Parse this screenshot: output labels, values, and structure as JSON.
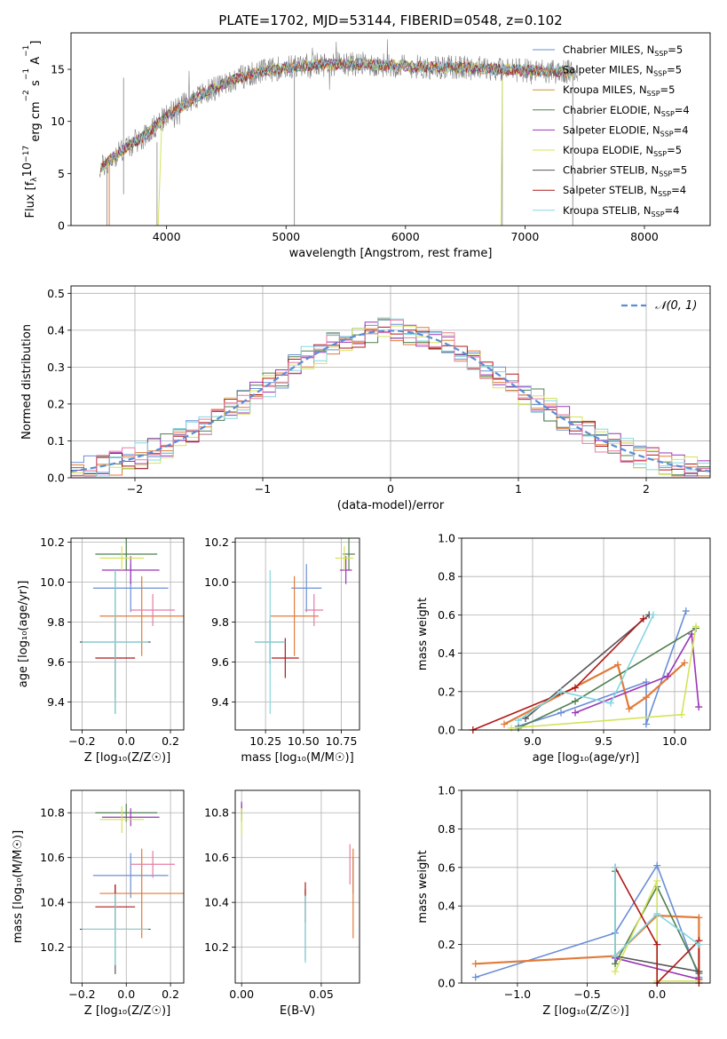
{
  "colors": {
    "chabrier_miles": "#6a8fd6",
    "salpeter_miles": "#e07b39",
    "kroupa_miles": "#c8963c",
    "chabrier_elodie": "#4f7f4f",
    "salpeter_elodie": "#9a36b7",
    "kroupa_elodie": "#d4e35a",
    "chabrier_stelib": "#555555",
    "salpeter_stelib": "#b01818",
    "kroupa_stelib": "#86d6e0",
    "pink": "#e67ba6",
    "normal_curve": "#5b8dd6",
    "grid": "#b0b0b0"
  },
  "chart_data": [
    {
      "id": "spectrum",
      "type": "line",
      "title": "PLATE=1702, MJD=53144, FIBERID=0548, z=0.102",
      "xlabel": "wavelength [Angstrom, rest frame]",
      "ylabel": "Flux [f",
      "ylabel_parts": [
        "Flux [f",
        "λ",
        "10",
        "−17",
        " erg cm",
        "−2",
        " s",
        "−1",
        " A",
        "−1",
        "]"
      ],
      "xlim": [
        3200,
        8550
      ],
      "ylim": [
        0,
        18.5
      ],
      "xticks": [
        4000,
        5000,
        6000,
        7000,
        8000
      ],
      "xtick_labels": [
        "4000",
        "5000",
        "6000",
        "7000",
        "8000"
      ],
      "yticks": [
        0,
        5,
        10,
        15
      ],
      "ytick_labels": [
        "0",
        "5",
        "10",
        "15"
      ],
      "grid": false,
      "legend_position": "top-right",
      "continuum": {
        "x": [
          3450,
          3600,
          3800,
          4000,
          4200,
          4400,
          4600,
          4800,
          5000,
          5200,
          5400,
          5600,
          5800,
          6000,
          6200,
          6400,
          6600,
          6800,
          7000,
          7200,
          7400
        ],
        "y": [
          5.5,
          7.0,
          8.5,
          10.5,
          12.0,
          13.2,
          14.2,
          14.8,
          15.2,
          15.4,
          15.5,
          15.5,
          15.4,
          15.3,
          15.2,
          15.2,
          15.1,
          15.0,
          14.9,
          14.8,
          14.7
        ]
      },
      "series": [
        {
          "name_parts": [
            "Chabrier MILES, N",
            "SSP",
            "=5"
          ],
          "color_key": "chabrier_miles"
        },
        {
          "name_parts": [
            "Salpeter MILES, N",
            "SSP",
            "=5"
          ],
          "color_key": "salpeter_miles"
        },
        {
          "name_parts": [
            "Kroupa MILES, N",
            "SSP",
            "=5"
          ],
          "color_key": "kroupa_miles"
        },
        {
          "name_parts": [
            "Chabrier ELODIE, N",
            "SSP",
            "=4"
          ],
          "color_key": "chabrier_elodie"
        },
        {
          "name_parts": [
            "Salpeter ELODIE, N",
            "SSP",
            "=4"
          ],
          "color_key": "salpeter_elodie"
        },
        {
          "name_parts": [
            "Kroupa ELODIE, N",
            "SSP",
            "=5"
          ],
          "color_key": "kroupa_elodie"
        },
        {
          "name_parts": [
            "Chabrier STELIB, N",
            "SSP",
            "=5"
          ],
          "color_key": "chabrier_stelib"
        },
        {
          "name_parts": [
            "Salpeter STELIB, N",
            "SSP",
            "=4"
          ],
          "color_key": "salpeter_stelib"
        },
        {
          "name_parts": [
            "Kroupa STELIB, N",
            "SSP",
            "=4"
          ],
          "color_key": "kroupa_stelib"
        }
      ]
    },
    {
      "id": "residuals",
      "type": "histogram",
      "xlabel": "(data-model)/error",
      "ylabel": "Normed distribution",
      "xlim": [
        -2.5,
        2.5
      ],
      "ylim": [
        0,
        0.52
      ],
      "xticks": [
        -2,
        -1,
        0,
        1,
        2
      ],
      "xtick_labels": [
        "−2",
        "−1",
        "0",
        "1",
        "2"
      ],
      "yticks": [
        0.0,
        0.1,
        0.2,
        0.3,
        0.4,
        0.5
      ],
      "ytick_labels": [
        "0.0",
        "0.1",
        "0.2",
        "0.3",
        "0.4",
        "0.5"
      ],
      "grid": true,
      "legend_position": "top-right",
      "legend_label": "𝒩(0, 1)",
      "bin_width": 0.1,
      "bin_start": -2.5,
      "hist_color_keys": [
        "chabrier_miles",
        "salpeter_miles",
        "chabrier_elodie",
        "salpeter_elodie",
        "kroupa_elodie",
        "salpeter_stelib",
        "kroupa_stelib",
        "pink"
      ]
    },
    {
      "id": "age_vs_Z",
      "type": "errorbar",
      "xlabel": "Z [log₁₀(Z/Z☉)]",
      "ylabel": "age  [log₁₀(age/yr)]",
      "xlim": [
        -0.25,
        0.26
      ],
      "ylim": [
        9.26,
        10.22
      ],
      "xticks": [
        -0.2,
        0.0,
        0.2
      ],
      "xtick_labels": [
        "−0.2",
        "0.0",
        "0.2"
      ],
      "yticks": [
        9.4,
        9.6,
        9.8,
        10.0,
        10.2
      ],
      "ytick_labels": [
        "9.4",
        "9.6",
        "9.8",
        "10.0",
        "10.2"
      ],
      "grid": true,
      "points": [
        {
          "color_key": "chabrier_miles",
          "x": 0.02,
          "xerr": 0.17,
          "y": 9.97,
          "yerr": 0.12
        },
        {
          "color_key": "salpeter_miles",
          "x": 0.07,
          "xerr": 0.19,
          "y": 9.83,
          "yerr": 0.2
        },
        {
          "color_key": "pink",
          "x": 0.12,
          "xerr": 0.1,
          "y": 9.86,
          "yerr": 0.08
        },
        {
          "color_key": "chabrier_elodie",
          "x": 0.0,
          "xerr": 0.14,
          "y": 10.14,
          "yerr": 0.08
        },
        {
          "color_key": "salpeter_elodie",
          "x": 0.02,
          "xerr": 0.13,
          "y": 10.06,
          "yerr": 0.07
        },
        {
          "color_key": "kroupa_elodie",
          "x": -0.02,
          "xerr": 0.1,
          "y": 10.12,
          "yerr": 0.06
        },
        {
          "color_key": "chabrier_stelib",
          "x": -0.05,
          "xerr": 0.16,
          "y": 9.7,
          "yerr": 0.36
        },
        {
          "color_key": "salpeter_stelib",
          "x": -0.05,
          "xerr": 0.09,
          "y": 9.62,
          "yerr": 0.2
        },
        {
          "color_key": "kroupa_stelib",
          "x": -0.05,
          "xerr": 0.15,
          "y": 9.7,
          "yerr": 0.36
        }
      ]
    },
    {
      "id": "age_vs_mass",
      "type": "errorbar",
      "xlabel": "mass [log₁₀(M/M☉)]",
      "ylabel": "",
      "xlim": [
        10.05,
        10.87
      ],
      "ylim": [
        9.26,
        10.22
      ],
      "xticks": [
        10.25,
        10.5,
        10.75
      ],
      "xtick_labels": [
        "10.25",
        "10.50",
        "10.75"
      ],
      "yticks": [
        9.4,
        9.6,
        9.8,
        10.0,
        10.2
      ],
      "ytick_labels": [
        "9.4",
        "9.6",
        "9.8",
        "10.0",
        "10.2"
      ],
      "grid": true,
      "points": [
        {
          "color_key": "chabrier_miles",
          "x": 10.52,
          "xerr": 0.1,
          "y": 9.97,
          "yerr": 0.12
        },
        {
          "color_key": "salpeter_miles",
          "x": 10.44,
          "xerr": 0.16,
          "y": 9.83,
          "yerr": 0.2
        },
        {
          "color_key": "pink",
          "x": 10.57,
          "xerr": 0.06,
          "y": 9.86,
          "yerr": 0.08
        },
        {
          "color_key": "chabrier_elodie",
          "x": 10.8,
          "xerr": 0.04,
          "y": 10.14,
          "yerr": 0.08
        },
        {
          "color_key": "salpeter_elodie",
          "x": 10.78,
          "xerr": 0.04,
          "y": 10.06,
          "yerr": 0.07
        },
        {
          "color_key": "kroupa_elodie",
          "x": 10.77,
          "xerr": 0.06,
          "y": 10.12,
          "yerr": 0.06
        },
        {
          "color_key": "chabrier_stelib",
          "x": 10.28,
          "xerr": 0.1,
          "y": 9.7,
          "yerr": 0.11
        },
        {
          "color_key": "salpeter_stelib",
          "x": 10.38,
          "xerr": 0.09,
          "y": 9.62,
          "yerr": 0.1
        },
        {
          "color_key": "kroupa_stelib",
          "x": 10.28,
          "xerr": 0.1,
          "y": 9.7,
          "yerr": 0.36
        }
      ]
    },
    {
      "id": "mass_weight_vs_age",
      "type": "line",
      "xlabel": "age  [log₁₀(age/yr)]",
      "ylabel": "mass weight",
      "xlim": [
        8.5,
        10.25
      ],
      "ylim": [
        0,
        1.0
      ],
      "xticks": [
        9.0,
        9.5,
        10.0
      ],
      "xtick_labels": [
        "9.0",
        "9.5",
        "10.0"
      ],
      "yticks": [
        0.0,
        0.2,
        0.4,
        0.6,
        0.8,
        1.0
      ],
      "ytick_labels": [
        "0.0",
        "0.2",
        "0.4",
        "0.6",
        "0.8",
        "1.0"
      ],
      "grid": true,
      "series": [
        {
          "color_key": "chabrier_miles",
          "x": [
            8.9,
            9.2,
            9.8,
            9.8,
            10.08
          ],
          "y": [
            0.02,
            0.09,
            0.25,
            0.03,
            0.62
          ]
        },
        {
          "color_key": "salpeter_miles",
          "x": [
            8.8,
            9.6,
            9.68,
            9.8,
            10.07
          ],
          "y": [
            0.03,
            0.34,
            0.11,
            0.17,
            0.35
          ]
        },
        {
          "color_key": "chabrier_elodie",
          "x": [
            8.9,
            9.3,
            10.15
          ],
          "y": [
            0.01,
            0.15,
            0.53
          ]
        },
        {
          "color_key": "salpeter_elodie",
          "x": [
            9.3,
            9.95,
            10.12,
            10.17
          ],
          "y": [
            0.09,
            0.28,
            0.5,
            0.12
          ]
        },
        {
          "color_key": "kroupa_elodie",
          "x": [
            8.85,
            10.05,
            10.15
          ],
          "y": [
            0.01,
            0.08,
            0.54
          ]
        },
        {
          "color_key": "chabrier_stelib",
          "x": [
            8.95,
            9.82
          ],
          "y": [
            0.06,
            0.6
          ]
        },
        {
          "color_key": "salpeter_stelib",
          "x": [
            8.58,
            9.3,
            9.78
          ],
          "y": [
            0.0,
            0.22,
            0.58
          ]
        },
        {
          "color_key": "kroupa_stelib",
          "x": [
            8.9,
            9.2,
            9.55,
            9.85
          ],
          "y": [
            0.05,
            0.2,
            0.14,
            0.6
          ]
        }
      ]
    },
    {
      "id": "mass_vs_Z",
      "type": "errorbar",
      "xlabel": "Z [log₁₀(Z/Z☉)]",
      "ylabel": "mass [log₁₀(M/M☉)]",
      "xlim": [
        -0.25,
        0.26
      ],
      "ylim": [
        10.04,
        10.9
      ],
      "xticks": [
        -0.2,
        0.0,
        0.2
      ],
      "xtick_labels": [
        "−0.2",
        "0.0",
        "0.2"
      ],
      "yticks": [
        10.2,
        10.4,
        10.6,
        10.8
      ],
      "ytick_labels": [
        "10.2",
        "10.4",
        "10.6",
        "10.8"
      ],
      "grid": true,
      "points": [
        {
          "color_key": "chabrier_miles",
          "x": 0.02,
          "xerr": 0.17,
          "y": 10.52,
          "yerr": 0.1
        },
        {
          "color_key": "salpeter_miles",
          "x": 0.07,
          "xerr": 0.19,
          "y": 10.44,
          "yerr": 0.2
        },
        {
          "color_key": "pink",
          "x": 0.12,
          "xerr": 0.1,
          "y": 10.57,
          "yerr": 0.06
        },
        {
          "color_key": "chabrier_elodie",
          "x": 0.0,
          "xerr": 0.14,
          "y": 10.8,
          "yerr": 0.04
        },
        {
          "color_key": "salpeter_elodie",
          "x": 0.02,
          "xerr": 0.13,
          "y": 10.78,
          "yerr": 0.04
        },
        {
          "color_key": "kroupa_elodie",
          "x": -0.02,
          "xerr": 0.1,
          "y": 10.77,
          "yerr": 0.06
        },
        {
          "color_key": "chabrier_stelib",
          "x": -0.05,
          "xerr": 0.16,
          "y": 10.28,
          "yerr": 0.2
        },
        {
          "color_key": "salpeter_stelib",
          "x": -0.05,
          "xerr": 0.09,
          "y": 10.38,
          "yerr": 0.1
        },
        {
          "color_key": "kroupa_stelib",
          "x": -0.05,
          "xerr": 0.15,
          "y": 10.28,
          "yerr": 0.16
        }
      ]
    },
    {
      "id": "mass_vs_EBV",
      "type": "errorbar",
      "xlabel": "E(B-V)",
      "ylabel": "",
      "xlim": [
        -0.004,
        0.074
      ],
      "ylim": [
        10.04,
        10.9
      ],
      "xticks": [
        0.0,
        0.05
      ],
      "xtick_labels": [
        "0.00",
        "0.05"
      ],
      "yticks": [
        10.2,
        10.4,
        10.6,
        10.8
      ],
      "ytick_labels": [
        "10.2",
        "10.4",
        "10.6",
        "10.8"
      ],
      "grid": true,
      "points": [
        {
          "color_key": "chabrier_miles",
          "x": 0.07,
          "xerr": 0,
          "y": 10.52,
          "yerr": 0.08
        },
        {
          "color_key": "salpeter_miles",
          "x": 0.07,
          "xerr": 0,
          "y": 10.44,
          "yerr": 0.2
        },
        {
          "color_key": "pink",
          "x": 0.068,
          "xerr": 0,
          "y": 10.57,
          "yerr": 0.09
        },
        {
          "color_key": "chabrier_elodie",
          "x": 0.0,
          "xerr": 0,
          "y": 10.8,
          "yerr": 0.04
        },
        {
          "color_key": "salpeter_elodie",
          "x": 0.0,
          "xerr": 0,
          "y": 10.82,
          "yerr": 0.03
        },
        {
          "color_key": "kroupa_elodie",
          "x": 0.0,
          "xerr": 0,
          "y": 10.76,
          "yerr": 0.06
        },
        {
          "color_key": "chabrier_stelib",
          "x": 0.04,
          "xerr": 0,
          "y": 10.3,
          "yerr": 0.16
        },
        {
          "color_key": "salpeter_stelib",
          "x": 0.04,
          "xerr": 0,
          "y": 10.4,
          "yerr": 0.09
        },
        {
          "color_key": "kroupa_stelib",
          "x": 0.04,
          "xerr": 0,
          "y": 10.28,
          "yerr": 0.15
        }
      ]
    },
    {
      "id": "mass_weight_vs_Z",
      "type": "line",
      "xlabel": "Z [log₁₀(Z/Z☉)]",
      "ylabel": "mass weight",
      "xlim": [
        -1.4,
        0.38
      ],
      "ylim": [
        0,
        1.0
      ],
      "xticks": [
        -1.0,
        -0.5,
        0.0
      ],
      "xtick_labels": [
        "−1.0",
        "−0.5",
        "0.0"
      ],
      "yticks": [
        0.0,
        0.2,
        0.4,
        0.6,
        0.8,
        1.0
      ],
      "ytick_labels": [
        "0.0",
        "0.2",
        "0.4",
        "0.6",
        "0.8",
        "1.0"
      ],
      "grid": true,
      "series": [
        {
          "color_key": "chabrier_miles",
          "x": [
            -1.3,
            -0.3,
            0.0,
            0.3
          ],
          "y": [
            0.03,
            0.26,
            0.61,
            0.03
          ]
        },
        {
          "color_key": "salpeter_miles",
          "x": [
            -1.3,
            -0.3,
            0.0,
            0.3,
            0.3
          ],
          "y": [
            0.1,
            0.14,
            0.35,
            0.34,
            0.06
          ]
        },
        {
          "color_key": "chabrier_elodie",
          "x": [
            -0.3,
            -0.3,
            0.0,
            0.3
          ],
          "y": [
            0.58,
            0.1,
            0.5,
            0.05
          ]
        },
        {
          "color_key": "salpeter_elodie",
          "x": [
            -0.3,
            0.3
          ],
          "y": [
            0.13,
            0.02
          ]
        },
        {
          "color_key": "kroupa_elodie",
          "x": [
            -0.3,
            0.0,
            0.0,
            0.3
          ],
          "y": [
            0.06,
            0.53,
            0.01,
            0.01
          ]
        },
        {
          "color_key": "chabrier_stelib",
          "x": [
            -0.3,
            0.3
          ],
          "y": [
            0.14,
            0.06
          ]
        },
        {
          "color_key": "salpeter_stelib",
          "x": [
            -0.3,
            0.0,
            0.0,
            0.3,
            0.3
          ],
          "y": [
            0.6,
            0.2,
            0.0,
            0.22,
            0.0
          ]
        },
        {
          "color_key": "kroupa_stelib",
          "x": [
            -0.3,
            -0.3,
            0.0,
            0.3
          ],
          "y": [
            0.6,
            0.14,
            0.36,
            0.2
          ]
        }
      ]
    }
  ]
}
